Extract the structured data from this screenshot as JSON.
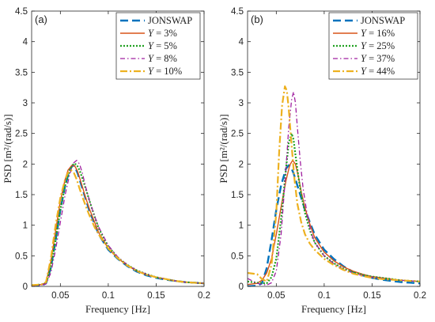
{
  "chart_data": [
    {
      "type": "line",
      "panel_label": "(a)",
      "xlabel": "Frequency [Hz]",
      "ylabel": "PSD  [m²/(rad/s)]",
      "xlim": [
        0.02,
        0.2
      ],
      "ylim": [
        0,
        4.5
      ],
      "xticks": [
        0.05,
        0.1,
        0.15,
        0.2
      ],
      "xtick_labels": [
        "0.05",
        "0.1",
        "0.15",
        "0.2"
      ],
      "yticks": [
        0,
        0.5,
        1,
        1.5,
        2,
        2.5,
        3,
        3.5,
        4,
        4.5
      ],
      "ytick_labels": [
        "0",
        "0.5",
        "1",
        "1.5",
        "2",
        "2.5",
        "3",
        "3.5",
        "4",
        "4.5"
      ],
      "legend_position": "top-right",
      "series": [
        {
          "name": "JONSWAP",
          "color": "#0072BD",
          "dash": "10,5",
          "width": 2.4,
          "x": [
            0.02,
            0.03,
            0.035,
            0.04,
            0.045,
            0.05,
            0.055,
            0.06,
            0.063,
            0.065,
            0.068,
            0.072,
            0.076,
            0.08,
            0.085,
            0.09,
            0.1,
            0.11,
            0.12,
            0.13,
            0.14,
            0.15,
            0.16,
            0.17,
            0.18,
            0.19,
            0.2
          ],
          "y": [
            0,
            0.01,
            0.05,
            0.3,
            0.75,
            1.25,
            1.65,
            1.92,
            1.98,
            1.96,
            1.85,
            1.65,
            1.45,
            1.25,
            1.05,
            0.85,
            0.6,
            0.45,
            0.33,
            0.24,
            0.18,
            0.14,
            0.11,
            0.09,
            0.07,
            0.06,
            0.05
          ]
        },
        {
          "name": "Y = 3%",
          "name_sym": "Y",
          "name_rest": " = 3%",
          "color": "#D95319",
          "dash": "",
          "width": 1.4,
          "x": [
            0.02,
            0.03,
            0.035,
            0.04,
            0.045,
            0.05,
            0.055,
            0.058,
            0.062,
            0.065,
            0.068,
            0.072,
            0.076,
            0.08,
            0.085,
            0.09,
            0.1,
            0.11,
            0.12,
            0.13,
            0.14,
            0.15,
            0.16,
            0.17,
            0.18,
            0.19,
            0.2
          ],
          "y": [
            0.02,
            0.03,
            0.06,
            0.4,
            0.9,
            1.4,
            1.75,
            1.9,
            1.98,
            1.97,
            1.88,
            1.68,
            1.47,
            1.28,
            1.08,
            0.88,
            0.62,
            0.46,
            0.34,
            0.25,
            0.19,
            0.15,
            0.12,
            0.09,
            0.07,
            0.06,
            0.05
          ]
        },
        {
          "name": "Y = 5%",
          "name_sym": "Y",
          "name_rest": " = 5%",
          "color": "#20A020",
          "dash": "2,2",
          "width": 2.2,
          "x": [
            0.02,
            0.03,
            0.035,
            0.04,
            0.045,
            0.05,
            0.055,
            0.06,
            0.064,
            0.067,
            0.07,
            0.074,
            0.078,
            0.082,
            0.086,
            0.09,
            0.1,
            0.11,
            0.12,
            0.13,
            0.14,
            0.15,
            0.16,
            0.17,
            0.18,
            0.19,
            0.2
          ],
          "y": [
            0.02,
            0.03,
            0.05,
            0.3,
            0.75,
            1.25,
            1.65,
            1.9,
            2.01,
            1.99,
            1.9,
            1.72,
            1.52,
            1.32,
            1.13,
            0.95,
            0.65,
            0.47,
            0.35,
            0.26,
            0.2,
            0.15,
            0.12,
            0.09,
            0.07,
            0.06,
            0.05
          ]
        },
        {
          "name": "Y = 8%",
          "name_sym": "Y",
          "name_rest": " = 8%",
          "color": "#A020A0",
          "dash": "6,3,1.5,3",
          "width": 1.3,
          "x": [
            0.02,
            0.03,
            0.035,
            0.04,
            0.045,
            0.05,
            0.055,
            0.06,
            0.064,
            0.067,
            0.07,
            0.073,
            0.076,
            0.08,
            0.085,
            0.09,
            0.1,
            0.11,
            0.12,
            0.13,
            0.14,
            0.15,
            0.16,
            0.17,
            0.18,
            0.19,
            0.2
          ],
          "y": [
            0.01,
            0.02,
            0.04,
            0.22,
            0.6,
            1.05,
            1.5,
            1.85,
            2.02,
            2.06,
            2.0,
            1.85,
            1.65,
            1.42,
            1.18,
            0.97,
            0.67,
            0.48,
            0.35,
            0.26,
            0.2,
            0.15,
            0.12,
            0.09,
            0.07,
            0.06,
            0.05
          ]
        },
        {
          "name": "Y = 10%",
          "name_sym": "Y",
          "name_rest": " = 10%",
          "color": "#EDB120",
          "dash": "9,3,2,3",
          "width": 2.2,
          "x": [
            0.02,
            0.03,
            0.035,
            0.04,
            0.045,
            0.05,
            0.055,
            0.058,
            0.061,
            0.064,
            0.067,
            0.07,
            0.074,
            0.078,
            0.082,
            0.086,
            0.09,
            0.1,
            0.11,
            0.12,
            0.13,
            0.14,
            0.15,
            0.16,
            0.17,
            0.18,
            0.19,
            0.2
          ],
          "y": [
            0.02,
            0.03,
            0.07,
            0.45,
            1.0,
            1.45,
            1.75,
            1.86,
            1.9,
            1.86,
            1.75,
            1.6,
            1.42,
            1.25,
            1.1,
            0.96,
            0.85,
            0.62,
            0.46,
            0.34,
            0.25,
            0.19,
            0.15,
            0.12,
            0.09,
            0.07,
            0.06,
            0.05
          ]
        }
      ]
    },
    {
      "type": "line",
      "panel_label": "(b)",
      "xlabel": "Frequency [Hz]",
      "ylabel": "PSD  [m²/(rad/s)]",
      "xlim": [
        0.02,
        0.2
      ],
      "ylim": [
        0,
        4.5
      ],
      "xticks": [
        0.05,
        0.1,
        0.15,
        0.2
      ],
      "xtick_labels": [
        "0.05",
        "0.1",
        "0.15",
        "0.2"
      ],
      "yticks": [
        0,
        0.5,
        1,
        1.5,
        2,
        2.5,
        3,
        3.5,
        4,
        4.5
      ],
      "ytick_labels": [
        "0",
        "0.5",
        "1",
        "1.5",
        "2",
        "2.5",
        "3",
        "3.5",
        "4",
        "4.5"
      ],
      "legend_position": "top-right",
      "series": [
        {
          "name": "JONSWAP",
          "color": "#0072BD",
          "dash": "10,5",
          "width": 2.4,
          "x": [
            0.02,
            0.03,
            0.035,
            0.04,
            0.045,
            0.05,
            0.055,
            0.06,
            0.063,
            0.065,
            0.068,
            0.072,
            0.076,
            0.08,
            0.085,
            0.09,
            0.1,
            0.11,
            0.12,
            0.13,
            0.14,
            0.15,
            0.16,
            0.17,
            0.18,
            0.19,
            0.2
          ],
          "y": [
            0,
            0.01,
            0.05,
            0.3,
            0.75,
            1.25,
            1.65,
            1.92,
            1.98,
            1.96,
            1.85,
            1.65,
            1.45,
            1.25,
            1.05,
            0.85,
            0.6,
            0.45,
            0.33,
            0.24,
            0.18,
            0.14,
            0.11,
            0.09,
            0.07,
            0.06,
            0.05
          ]
        },
        {
          "name": "Y = 16%",
          "name_sym": "Y",
          "name_rest": " = 16%",
          "color": "#D95319",
          "dash": "",
          "width": 1.4,
          "x": [
            0.02,
            0.03,
            0.035,
            0.04,
            0.045,
            0.05,
            0.055,
            0.06,
            0.064,
            0.067,
            0.07,
            0.073,
            0.076,
            0.08,
            0.085,
            0.09,
            0.1,
            0.11,
            0.12,
            0.13,
            0.14,
            0.15,
            0.16,
            0.17,
            0.18,
            0.19,
            0.2
          ],
          "y": [
            0.03,
            0.05,
            0.1,
            0.22,
            0.45,
            0.85,
            1.3,
            1.72,
            1.98,
            2.06,
            2.0,
            1.8,
            1.55,
            1.28,
            1.02,
            0.8,
            0.56,
            0.42,
            0.32,
            0.25,
            0.2,
            0.16,
            0.14,
            0.12,
            0.1,
            0.09,
            0.08
          ]
        },
        {
          "name": "Y = 25%",
          "name_sym": "Y",
          "name_rest": " = 25%",
          "color": "#20A020",
          "dash": "2,2",
          "width": 2.2,
          "x": [
            0.02,
            0.03,
            0.04,
            0.045,
            0.05,
            0.055,
            0.06,
            0.063,
            0.066,
            0.068,
            0.07,
            0.073,
            0.076,
            0.08,
            0.085,
            0.09,
            0.1,
            0.11,
            0.12,
            0.13,
            0.14,
            0.15,
            0.16,
            0.17,
            0.18,
            0.19,
            0.2
          ],
          "y": [
            0.08,
            0.06,
            0.05,
            0.15,
            0.45,
            1.1,
            1.9,
            2.35,
            2.5,
            2.4,
            2.15,
            1.8,
            1.5,
            1.2,
            0.92,
            0.72,
            0.5,
            0.38,
            0.29,
            0.23,
            0.19,
            0.16,
            0.14,
            0.12,
            0.1,
            0.09,
            0.08
          ]
        },
        {
          "name": "Y = 37%",
          "name_sym": "Y",
          "name_rest": " = 37%",
          "color": "#A020A0",
          "dash": "6,3,1.5,3",
          "width": 1.3,
          "x": [
            0.02,
            0.03,
            0.04,
            0.045,
            0.05,
            0.055,
            0.06,
            0.063,
            0.066,
            0.068,
            0.07,
            0.072,
            0.075,
            0.078,
            0.082,
            0.086,
            0.09,
            0.1,
            0.11,
            0.12,
            0.13,
            0.14,
            0.15,
            0.16,
            0.17,
            0.18,
            0.19,
            0.2
          ],
          "y": [
            0.13,
            0.05,
            0.02,
            0.06,
            0.25,
            0.85,
            1.9,
            2.6,
            3.05,
            3.18,
            3.0,
            2.6,
            2.05,
            1.6,
            1.2,
            0.9,
            0.72,
            0.5,
            0.37,
            0.28,
            0.22,
            0.18,
            0.15,
            0.13,
            0.11,
            0.1,
            0.09,
            0.08
          ]
        },
        {
          "name": "Y = 44%",
          "name_sym": "Y",
          "name_rest": " = 44%",
          "color": "#EDB120",
          "dash": "9,3,2,3",
          "width": 2.2,
          "x": [
            0.02,
            0.03,
            0.035,
            0.04,
            0.045,
            0.05,
            0.053,
            0.056,
            0.059,
            0.061,
            0.063,
            0.066,
            0.069,
            0.072,
            0.076,
            0.08,
            0.085,
            0.09,
            0.1,
            0.11,
            0.12,
            0.13,
            0.14,
            0.15,
            0.16,
            0.17,
            0.18,
            0.19,
            0.2
          ],
          "y": [
            0.22,
            0.2,
            0.12,
            0.08,
            0.35,
            1.2,
            2.2,
            2.95,
            3.27,
            3.2,
            2.9,
            2.3,
            1.75,
            1.35,
            1.05,
            0.85,
            0.7,
            0.6,
            0.45,
            0.35,
            0.27,
            0.21,
            0.17,
            0.14,
            0.12,
            0.11,
            0.1,
            0.09,
            0.08
          ]
        }
      ]
    }
  ]
}
